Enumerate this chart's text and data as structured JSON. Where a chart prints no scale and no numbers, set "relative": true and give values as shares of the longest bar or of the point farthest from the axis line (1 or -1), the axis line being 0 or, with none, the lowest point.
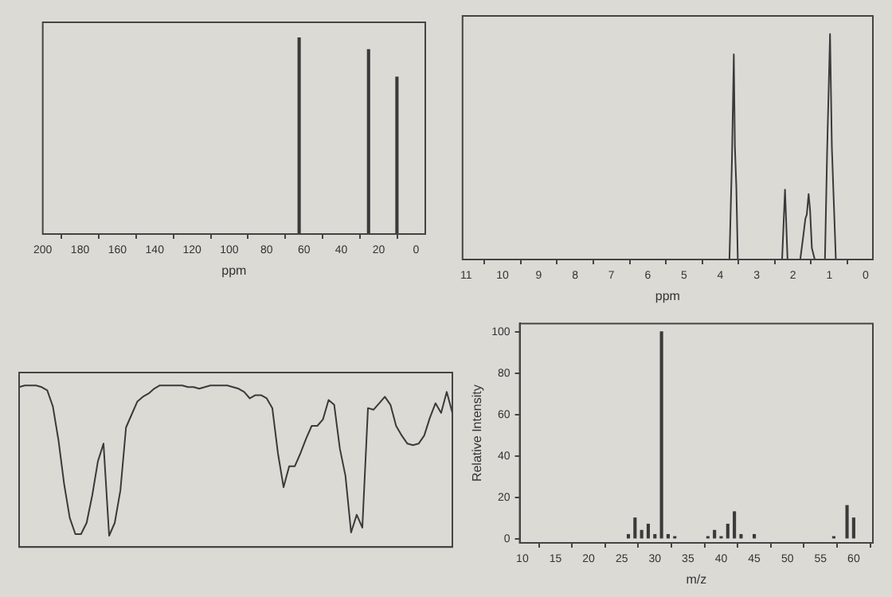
{
  "chart_data": [
    {
      "type": "bar",
      "relative": true,
      "xlabel": "ppm",
      "xlim": [
        200,
        -5
      ],
      "xticks": [
        200,
        180,
        160,
        140,
        120,
        100,
        80,
        60,
        40,
        20,
        0
      ],
      "x": [
        62.6,
        25.4,
        10.2
      ],
      "series": [
        {
          "color": "#3a3a3a",
          "values": [
            1,
            0.94,
            0.8
          ]
        }
      ]
    },
    {
      "type": "line",
      "relative": true,
      "xlabel": "ppm",
      "xlim": [
        11.1,
        -0.2
      ],
      "xticks": [
        11,
        10,
        9,
        8,
        7,
        6,
        5,
        4,
        3,
        2,
        1,
        0
      ],
      "x": [
        11,
        3.75,
        3.68,
        3.63,
        3.6,
        3.56,
        3.52,
        2.3,
        2.22,
        2.15,
        1.8,
        1.72,
        1.66,
        1.62,
        1.57,
        1.53,
        1.48,
        1.4,
        1.12,
        1.06,
        0.98,
        0.93,
        0.88,
        0.82,
        0
      ],
      "series": [
        {
          "color": "#3a3a3a",
          "values": [
            0,
            0,
            0.45,
            0.91,
            0.5,
            0.32,
            0,
            0,
            0.31,
            0,
            0,
            0.1,
            0.18,
            0.2,
            0.29,
            0.22,
            0.05,
            0,
            0,
            0.48,
            1,
            0.5,
            0.27,
            0,
            0
          ]
        }
      ]
    },
    {
      "type": "line",
      "relative": true,
      "categories": [
        null,
        null,
        null,
        null,
        null,
        null,
        null,
        null,
        null,
        null,
        null,
        null,
        null,
        null,
        null,
        null,
        null,
        null,
        null,
        null,
        null,
        null,
        null,
        null,
        null,
        null,
        null,
        null,
        null,
        null,
        null,
        null,
        null,
        null,
        null,
        null,
        null,
        null,
        null,
        null,
        null,
        null,
        null,
        null,
        null,
        null,
        null,
        null,
        null,
        null,
        null,
        null,
        null,
        null,
        null,
        null,
        null,
        null,
        null,
        null,
        null,
        null,
        null,
        null,
        null,
        null,
        null,
        null,
        null,
        null,
        null,
        null,
        null,
        null,
        null,
        null,
        null,
        null
      ],
      "series": [
        {
          "color": "#3a3a3a",
          "values": [
            0.99,
            1,
            1,
            1,
            0.99,
            0.97,
            0.87,
            0.66,
            0.39,
            0.18,
            0.08,
            0.08,
            0.15,
            0.32,
            0.53,
            0.64,
            0.07,
            0.15,
            0.35,
            0.74,
            0.82,
            0.9,
            0.93,
            0.95,
            0.98,
            1,
            1,
            1,
            1,
            1,
            0.99,
            0.99,
            0.98,
            0.99,
            1,
            1,
            1,
            1,
            0.99,
            0.98,
            0.96,
            0.92,
            0.94,
            0.94,
            0.92,
            0.86,
            0.58,
            0.37,
            0.5,
            0.5,
            0.58,
            0.67,
            0.75,
            0.75,
            0.79,
            0.91,
            0.88,
            0.61,
            0.44,
            0.09,
            0.2,
            0.12,
            0.86,
            0.85,
            0.89,
            0.93,
            0.88,
            0.75,
            0.69,
            0.64,
            0.63,
            0.64,
            0.69,
            0.8,
            0.89,
            0.83,
            0.96,
            0.83
          ]
        }
      ]
    },
    {
      "type": "bar",
      "xlabel": "m/z",
      "ylabel": "Relative Intensity",
      "xlim": [
        9.6,
        62.9
      ],
      "xticks": [
        10,
        15,
        20,
        25,
        30,
        35,
        40,
        45,
        50,
        55,
        60
      ],
      "ylim": [
        -2,
        104
      ],
      "yticks": [
        0,
        20,
        40,
        60,
        80,
        100
      ],
      "x": [
        26,
        27,
        28,
        29,
        30,
        31,
        32,
        33,
        38,
        39,
        40,
        41,
        42,
        43,
        45,
        57,
        59,
        60
      ],
      "series": [
        {
          "color": "#3a3a3a",
          "values": [
            2,
            10,
            4,
            7,
            2,
            100,
            2,
            1,
            1,
            4,
            1,
            7,
            13,
            2,
            2,
            1,
            16,
            10
          ]
        }
      ]
    }
  ]
}
